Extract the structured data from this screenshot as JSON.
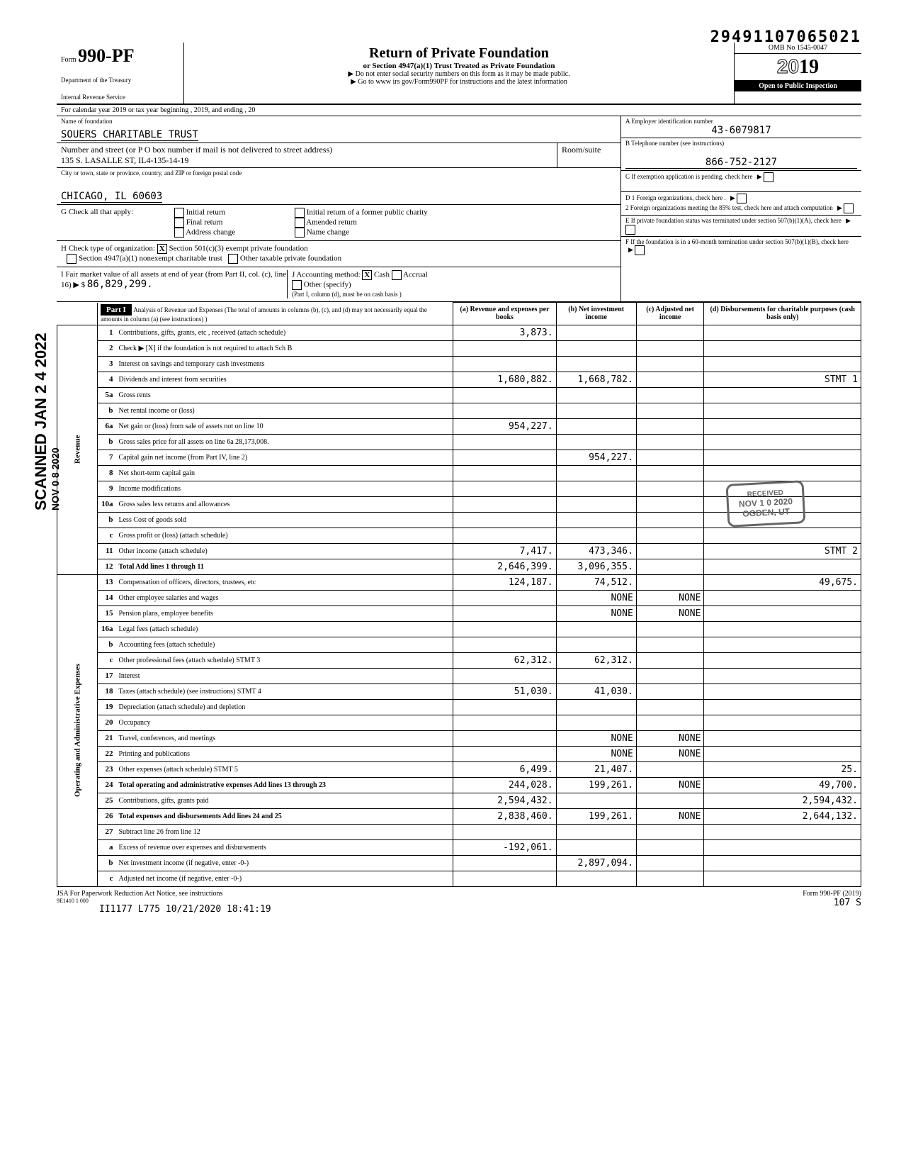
{
  "page_stamp": "29491107065021",
  "omb": "OMB No 1545-0047",
  "form_no": "990-PF",
  "form_label": "Form",
  "dept1": "Department of the Treasury",
  "dept2": "Internal Revenue Service",
  "title": "Return of Private Foundation",
  "subtitle": "or Section 4947(a)(1) Trust Treated as Private Foundation",
  "note1": "▶ Do not enter social security numbers on this form as it may be made public.",
  "note2": "▶ Go to www irs gov/Form990PF for instructions and the latest information",
  "year": "2019",
  "inspection": "Open to Public Inspection",
  "cal_year": "For calendar year 2019 or tax year beginning                              , 2019, and ending                      , 20",
  "name_label": "Name of foundation",
  "name": "SOUERS CHARITABLE TRUST",
  "addr_label": "Number and street (or P O box number if mail is not delivered to street address)",
  "addr": "135 S. LASALLE ST, IL4-135-14-19",
  "room_label": "Room/suite",
  "city_label": "City or town, state or province, country, and ZIP or foreign postal code",
  "city": "CHICAGO, IL 60603",
  "ein_label": "A  Employer identification number",
  "ein": "43-6079817",
  "phone_label": "B  Telephone number (see instructions)",
  "phone": "866-752-2127",
  "c_label": "C  If exemption application is pending, check here",
  "d1": "D  1  Foreign organizations, check here .",
  "d2": "2  Foreign organizations meeting the 85% test, check here and attach computation",
  "e_label": "E  If private foundation status was terminated under section 507(b)(1)(A), check here",
  "f_label": "F  If the foundation is in a 60-month termination under section 507(b)(1)(B), check here",
  "g_label": "G  Check all that apply:",
  "g_opts": [
    "Initial return",
    "Final return",
    "Address change",
    "Initial return of a former public charity",
    "Amended return",
    "Name change"
  ],
  "h_label": "H  Check type of organization:",
  "h_opts": [
    "Section 501(c)(3) exempt private foundation",
    "Section 4947(a)(1) nonexempt charitable trust",
    "Other taxable private foundation"
  ],
  "i_label": "I  Fair market value of all assets at end of year (from Part II, col. (c), line 16) ▶ $",
  "i_value": "86,829,299.",
  "j_label": "J Accounting method:",
  "j_cash": "Cash",
  "j_accrual": "Accrual",
  "j_other": "Other (specify)",
  "j_note": "(Part I, column (d), must be on cash basis )",
  "part1": "Part I",
  "part1_desc": "Analysis of Revenue and Expenses (The total of amounts in columns (b), (c), and (d) may not necessarily equal the amounts in column (a) (see instructions) )",
  "cols": {
    "a": "(a) Revenue and expenses per books",
    "b": "(b) Net investment income",
    "c": "(c) Adjusted net income",
    "d": "(d) Disbursements for charitable purposes (cash basis only)"
  },
  "rows": [
    {
      "n": "1",
      "d": "Contributions, gifts, grants, etc , received (attach schedule)",
      "a": "3,873."
    },
    {
      "n": "2",
      "d": "Check ▶  [X]  if the foundation is not required to attach Sch B"
    },
    {
      "n": "3",
      "d": "Interest on savings and temporary cash investments"
    },
    {
      "n": "4",
      "d": "Dividends and interest from securities",
      "a": "1,680,882.",
      "b": "1,668,782.",
      "dd": "STMT 1"
    },
    {
      "n": "5a",
      "d": "Gross rents"
    },
    {
      "n": "b",
      "d": "Net rental income or (loss)"
    },
    {
      "n": "6a",
      "d": "Net gain or (loss) from sale of assets not on line 10",
      "a": "954,227."
    },
    {
      "n": "b",
      "d": "Gross sales price for all assets on line 6a         28,173,008."
    },
    {
      "n": "7",
      "d": "Capital gain net income (from Part IV, line 2)",
      "b": "954,227."
    },
    {
      "n": "8",
      "d": "Net short-term capital gain"
    },
    {
      "n": "9",
      "d": "Income modifications"
    },
    {
      "n": "10a",
      "d": "Gross sales less returns and allowances"
    },
    {
      "n": "b",
      "d": "Less Cost of goods sold"
    },
    {
      "n": "c",
      "d": "Gross profit or (loss) (attach schedule)"
    },
    {
      "n": "11",
      "d": "Other income (attach schedule)",
      "a": "7,417.",
      "b": "473,346.",
      "dd": "STMT 2"
    },
    {
      "n": "12",
      "d": "Total Add lines 1 through 11",
      "a": "2,646,399.",
      "b": "3,096,355."
    },
    {
      "n": "13",
      "d": "Compensation of officers, directors, trustees, etc",
      "a": "124,187.",
      "b": "74,512.",
      "dd": "49,675."
    },
    {
      "n": "14",
      "d": "Other employee salaries and wages",
      "b": "NONE",
      "c": "NONE"
    },
    {
      "n": "15",
      "d": "Pension plans, employee benefits",
      "b": "NONE",
      "c": "NONE"
    },
    {
      "n": "16a",
      "d": "Legal fees (attach schedule)"
    },
    {
      "n": "b",
      "d": "Accounting fees (attach schedule)"
    },
    {
      "n": "c",
      "d": "Other professional fees (attach schedule) STMT 3",
      "a": "62,312.",
      "b": "62,312."
    },
    {
      "n": "17",
      "d": "Interest"
    },
    {
      "n": "18",
      "d": "Taxes (attach schedule) (see instructions) STMT 4",
      "a": "51,030.",
      "b": "41,030."
    },
    {
      "n": "19",
      "d": "Depreciation (attach schedule) and depletion"
    },
    {
      "n": "20",
      "d": "Occupancy"
    },
    {
      "n": "21",
      "d": "Travel, conferences, and meetings",
      "b": "NONE",
      "c": "NONE"
    },
    {
      "n": "22",
      "d": "Printing and publications",
      "b": "NONE",
      "c": "NONE"
    },
    {
      "n": "23",
      "d": "Other expenses (attach schedule) STMT 5",
      "a": "6,499.",
      "b": "21,407.",
      "dd": "25."
    },
    {
      "n": "24",
      "d": "Total operating and administrative expenses Add lines 13 through 23",
      "a": "244,028.",
      "b": "199,261.",
      "c": "NONE",
      "dd": "49,700."
    },
    {
      "n": "25",
      "d": "Contributions, gifts, grants paid",
      "a": "2,594,432.",
      "dd": "2,594,432."
    },
    {
      "n": "26",
      "d": "Total expenses and disbursements Add lines 24 and 25",
      "a": "2,838,460.",
      "b": "199,261.",
      "c": "NONE",
      "dd": "2,644,132."
    },
    {
      "n": "27",
      "d": "Subtract line 26 from line 12"
    },
    {
      "n": "a",
      "d": "Excess of revenue over expenses and disbursements",
      "a": "-192,061."
    },
    {
      "n": "b",
      "d": "Net investment income (if negative, enter -0-)",
      "b": "2,897,094."
    },
    {
      "n": "c",
      "d": "Adjusted net income (if negative, enter -0-)"
    }
  ],
  "vert_revenue": "Revenue",
  "vert_expenses": "Operating and Administrative Expenses",
  "side_scanned": "SCANNED JAN 2 4 2022",
  "side_nov": "NOV 0 8 2020",
  "stamp_received": "RECEIVED",
  "stamp_date": "NOV 1 0 2020",
  "stamp_loc": "OGDEN, UT",
  "footer_left": "JSA For Paperwork Reduction Act Notice, see instructions",
  "footer_jsa": "9E1410 1 000",
  "footer_mid": "II1177 L775 10/21/2020 18:41:19",
  "footer_form": "Form 990-PF (2019)",
  "footer_page": "107   S"
}
